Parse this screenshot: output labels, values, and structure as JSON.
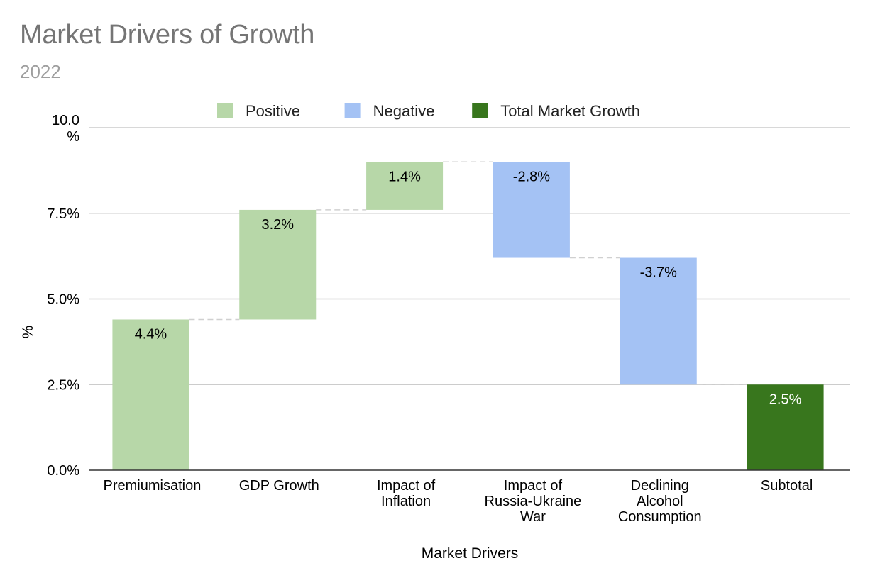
{
  "chart_data": {
    "type": "waterfall",
    "title": "Market Drivers of Growth",
    "subtitle": "2022",
    "xlabel": "Market Drivers",
    "ylabel": "%",
    "ylim": [
      0,
      10
    ],
    "yticks": [
      {
        "value": 0,
        "label": "0.0%"
      },
      {
        "value": 2.5,
        "label": "2.5%"
      },
      {
        "value": 5,
        "label": "5.0%"
      },
      {
        "value": 7.5,
        "label": "7.5%"
      },
      {
        "value": 10,
        "label": "10.0%"
      }
    ],
    "grid": true,
    "legend_position": "top",
    "legend": [
      {
        "key": "positive",
        "name": "Positive",
        "color": "#b7d7a8"
      },
      {
        "key": "negative",
        "name": "Negative",
        "color": "#a4c2f4"
      },
      {
        "key": "total",
        "name": "Total Market Growth",
        "color": "#38761d"
      }
    ],
    "categories": [
      [
        "Premiumisation"
      ],
      [
        "GDP Growth"
      ],
      [
        "Impact of",
        "Inflation"
      ],
      [
        "Impact of",
        "Russia-Ukraine",
        "War"
      ],
      [
        "Declining",
        "Alcohol",
        "Consumption"
      ],
      [
        "Subtotal"
      ]
    ],
    "values": [
      4.4,
      3.2,
      1.4,
      -2.8,
      -3.7,
      2.5
    ],
    "labels": [
      "4.4%",
      "3.2%",
      "1.4%",
      "-2.8%",
      "-3.7%",
      "2.5%"
    ],
    "kinds": [
      "positive",
      "positive",
      "positive",
      "negative",
      "negative",
      "total"
    ]
  }
}
